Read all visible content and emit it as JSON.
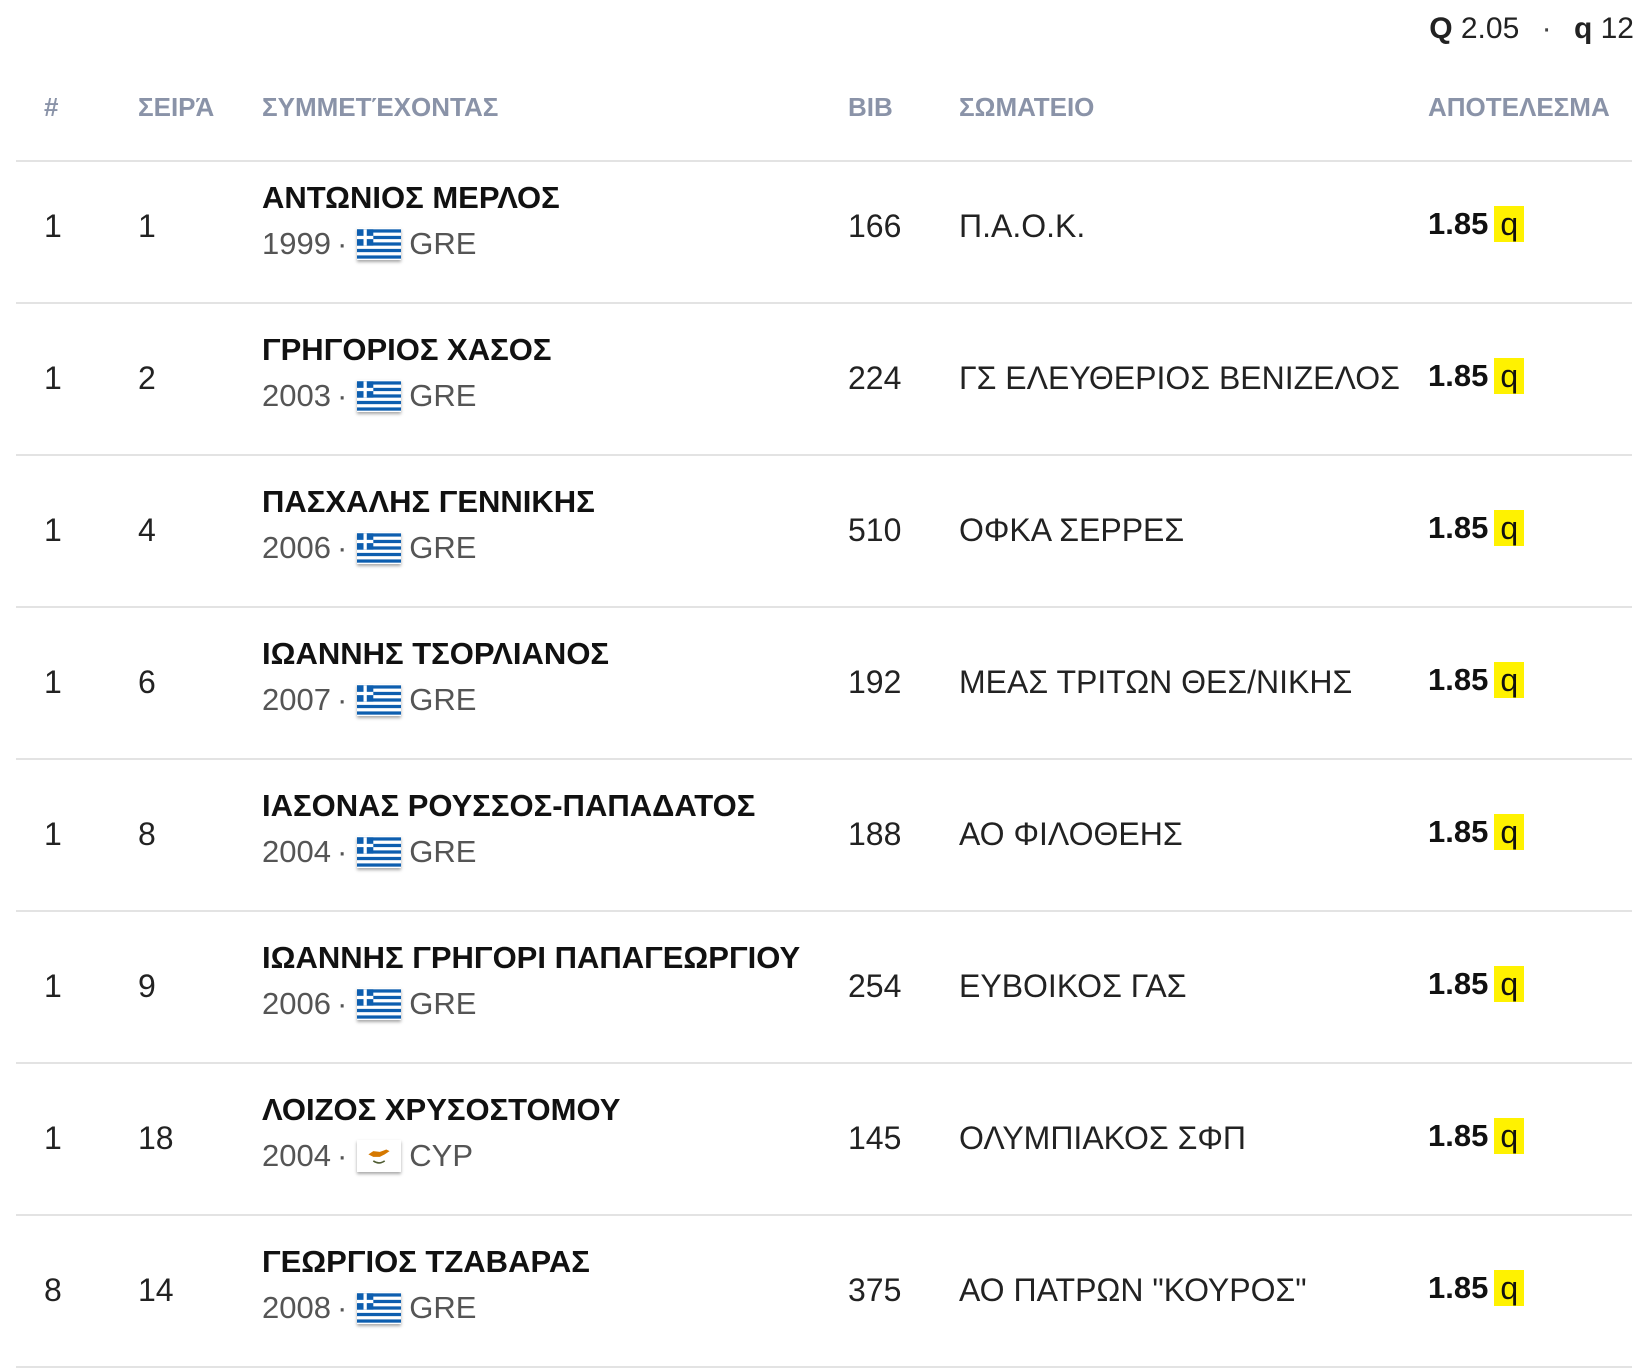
{
  "summary": {
    "Q_label": "Q",
    "Q_value": "2.05",
    "separator": "·",
    "q_label": "q",
    "q_value": "12"
  },
  "columns": {
    "rank": "#",
    "heat": "ΣΕΙΡΆ",
    "athlete": "ΣΥΜΜΕΤΈΧΟΝΤΑΣ",
    "bib": "BIB",
    "club": "ΣΩΜΑΤΕΙΟ",
    "result": "ΑΠΟΤΕΛΕΣΜΑ"
  },
  "rows": [
    {
      "rank": "1",
      "heat": "1",
      "name": "ΑΝΤΩΝΙΟΣ ΜΕΡΛΟΣ",
      "year": "1999",
      "flag": "greece-flag-icon",
      "country": "GRE",
      "bib": "166",
      "club": "Π.Α.Ο.Κ.",
      "result": "1.85",
      "badge": "q"
    },
    {
      "rank": "1",
      "heat": "2",
      "name": "ΓΡΗΓΟΡΙΟΣ ΧΑΣΟΣ",
      "year": "2003",
      "flag": "greece-flag-icon",
      "country": "GRE",
      "bib": "224",
      "club": "ΓΣ ΕΛΕΥΘΕΡΙΟΣ ΒΕΝΙΖΕΛΟΣ",
      "result": "1.85",
      "badge": "q"
    },
    {
      "rank": "1",
      "heat": "4",
      "name": "ΠΑΣΧΑΛΗΣ ΓΕΝΝΙΚΗΣ",
      "year": "2006",
      "flag": "greece-flag-icon",
      "country": "GRE",
      "bib": "510",
      "club": "ΟΦΚΑ ΣΕΡΡΕΣ",
      "result": "1.85",
      "badge": "q"
    },
    {
      "rank": "1",
      "heat": "6",
      "name": "ΙΩΑΝΝΗΣ ΤΣΟΡΛΙΑΝΟΣ",
      "year": "2007",
      "flag": "greece-flag-icon",
      "country": "GRE",
      "bib": "192",
      "club": "ΜΕΑΣ ΤΡΙΤΩΝ ΘΕΣ/ΝΙΚΗΣ",
      "result": "1.85",
      "badge": "q"
    },
    {
      "rank": "1",
      "heat": "8",
      "name": "ΙΑΣΟΝΑΣ ΡΟΥΣΣΟΣ-ΠΑΠΑΔΑΤΟΣ",
      "year": "2004",
      "flag": "greece-flag-icon",
      "country": "GRE",
      "bib": "188",
      "club": "ΑΟ ΦΙΛΟΘΕΗΣ",
      "result": "1.85",
      "badge": "q"
    },
    {
      "rank": "1",
      "heat": "9",
      "name": "ΙΩΑΝΝΗΣ ΓΡΗΓΟΡΙ ΠΑΠΑΓΕΩΡΓΙΟΥ",
      "year": "2006",
      "flag": "greece-flag-icon",
      "country": "GRE",
      "bib": "254",
      "club": "ΕΥΒΟΙΚΟΣ ΓΑΣ",
      "result": "1.85",
      "badge": "q"
    },
    {
      "rank": "1",
      "heat": "18",
      "name": "ΛΟΙΖΟΣ ΧΡΥΣΟΣΤΟΜΟΥ",
      "year": "2004",
      "flag": "cyprus-flag-icon",
      "country": "CYP",
      "bib": "145",
      "club": "ΟΛΥΜΠΙΑΚΟΣ ΣΦΠ",
      "result": "1.85",
      "badge": "q"
    },
    {
      "rank": "8",
      "heat": "14",
      "name": "ΓΕΩΡΓΙΟΣ ΤΖΑΒΑΡΑΣ",
      "year": "2008",
      "flag": "greece-flag-icon",
      "country": "GRE",
      "bib": "375",
      "club": "ΑΟ ΠΑΤΡΩΝ \"ΚΟΥΡΟΣ\"",
      "result": "1.85",
      "badge": "q"
    }
  ],
  "colors": {
    "header_text": "#8a93a8",
    "badge_bg": "#fff200",
    "divider": "#e3e3e3",
    "greece_blue": "#0d5eaf",
    "cyprus_copper": "#d57800"
  }
}
